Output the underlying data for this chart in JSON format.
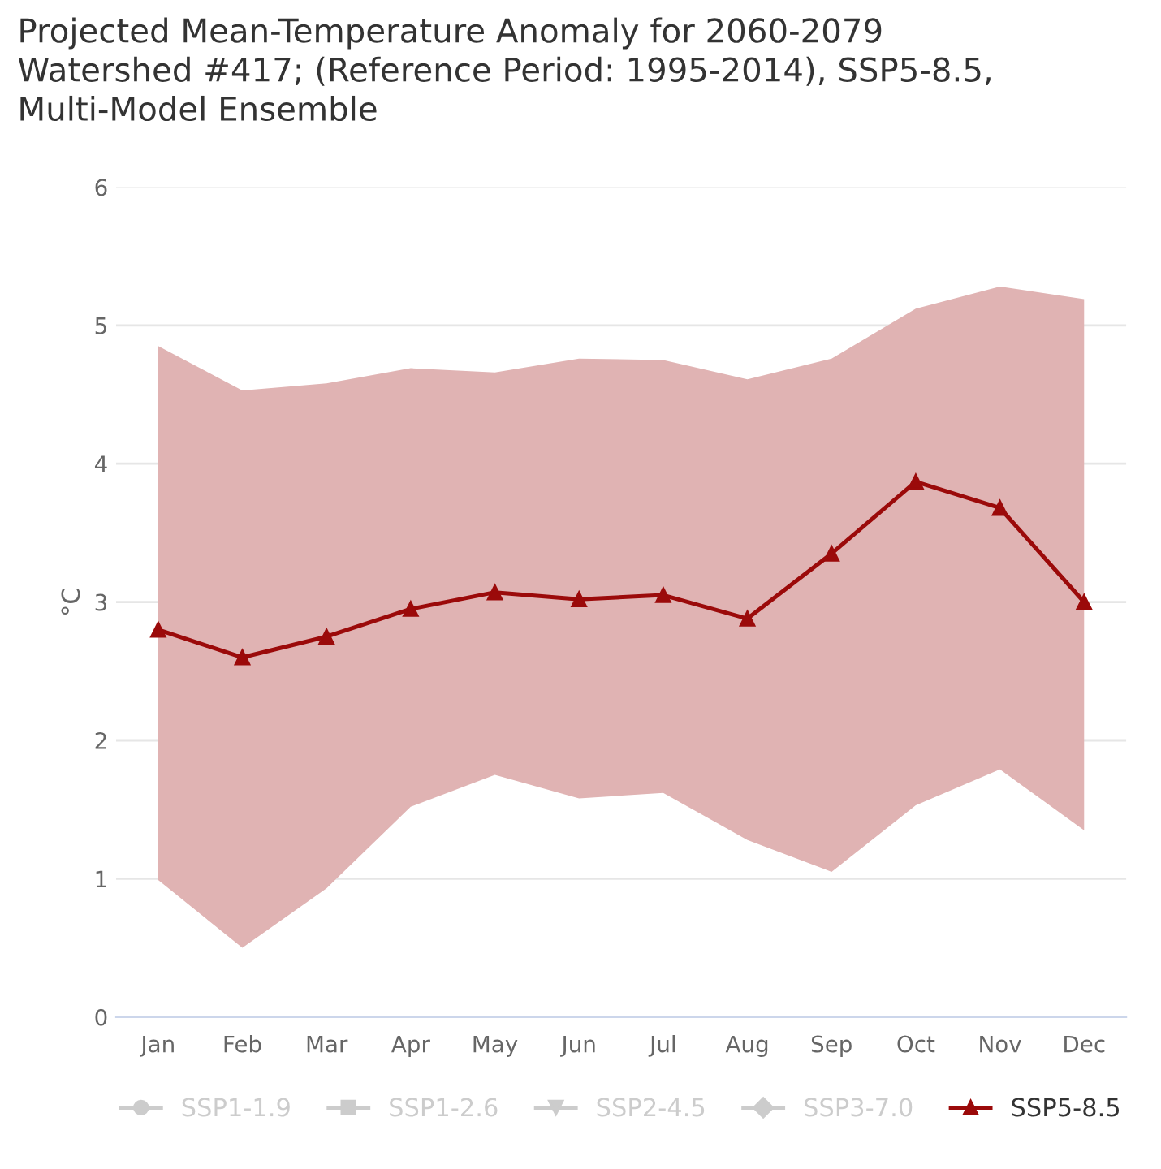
{
  "chart_data": {
    "type": "line",
    "title": "Projected Mean-Temperature Anomaly for 2060-2079\nWatershed #417; (Reference Period: 1995-2014), SSP5-8.5,\nMulti-Model Ensemble",
    "ylabel": "°C",
    "categories": [
      "Jan",
      "Feb",
      "Mar",
      "Apr",
      "May",
      "Jun",
      "Jul",
      "Aug",
      "Sep",
      "Oct",
      "Nov",
      "Dec"
    ],
    "series": [
      {
        "name": "SSP1-1.9",
        "color": "#cccccc",
        "marker": "circle",
        "values": [
          null,
          null,
          null,
          null,
          null,
          null,
          null,
          null,
          null,
          null,
          null,
          null
        ]
      },
      {
        "name": "SSP1-2.6",
        "color": "#cccccc",
        "marker": "square",
        "values": [
          null,
          null,
          null,
          null,
          null,
          null,
          null,
          null,
          null,
          null,
          null,
          null
        ]
      },
      {
        "name": "SSP2-4.5",
        "color": "#cccccc",
        "marker": "triangle_down",
        "values": [
          null,
          null,
          null,
          null,
          null,
          null,
          null,
          null,
          null,
          null,
          null,
          null
        ]
      },
      {
        "name": "SSP3-7.0",
        "color": "#cccccc",
        "marker": "diamond",
        "values": [
          null,
          null,
          null,
          null,
          null,
          null,
          null,
          null,
          null,
          null,
          null,
          null
        ]
      },
      {
        "name": "SSP5-8.5",
        "color": "#9b0a0a",
        "marker": "triangle",
        "values": [
          2.8,
          2.6,
          2.75,
          2.95,
          3.07,
          3.02,
          3.05,
          2.88,
          3.35,
          3.87,
          3.68,
          3.0
        ],
        "lower": [
          0.99,
          0.5,
          0.93,
          1.52,
          1.75,
          1.58,
          1.62,
          1.28,
          1.05,
          1.53,
          1.79,
          1.35
        ],
        "upper": [
          4.85,
          4.53,
          4.58,
          4.69,
          4.66,
          4.76,
          4.75,
          4.61,
          4.76,
          5.12,
          5.28,
          5.19
        ]
      }
    ],
    "ylim": [
      0,
      6
    ],
    "yticks": [
      0,
      1,
      2,
      3,
      4,
      5,
      6
    ],
    "grid": "y",
    "legend": "bottom"
  }
}
